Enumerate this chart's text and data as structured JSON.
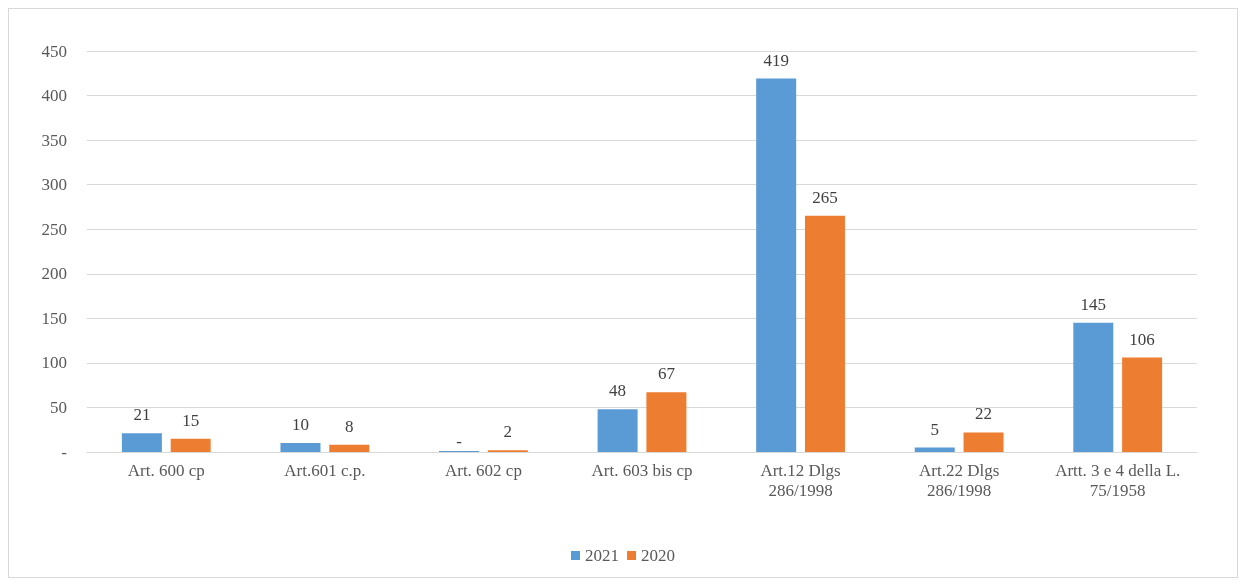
{
  "chart_data": {
    "type": "bar",
    "categories": [
      "Art. 600 cp",
      "Art.601 c.p.",
      "Art. 602 cp",
      "Art. 603 bis cp",
      "Art.12 Dlgs 286/1998",
      "Art.22 Dlgs 286/1998",
      "Artt. 3 e 4 della L. 75/1958"
    ],
    "series": [
      {
        "name": "2021",
        "color": "#5b9bd5",
        "values": [
          21,
          10,
          0,
          48,
          419,
          5,
          145
        ],
        "value_labels": [
          "21",
          "10",
          "-",
          "48",
          "419",
          "5",
          "145"
        ]
      },
      {
        "name": "2020",
        "color": "#ed7d31",
        "values": [
          15,
          8,
          2,
          67,
          265,
          22,
          106
        ],
        "value_labels": [
          "15",
          "8",
          "2",
          "67",
          "265",
          "22",
          "106"
        ]
      }
    ],
    "ylim": [
      0,
      450
    ],
    "yticks": [
      {
        "value": 0,
        "label": "-"
      },
      50,
      100,
      150,
      200,
      250,
      300,
      350,
      400,
      450
    ],
    "grid": "y",
    "legend": "bottom"
  }
}
